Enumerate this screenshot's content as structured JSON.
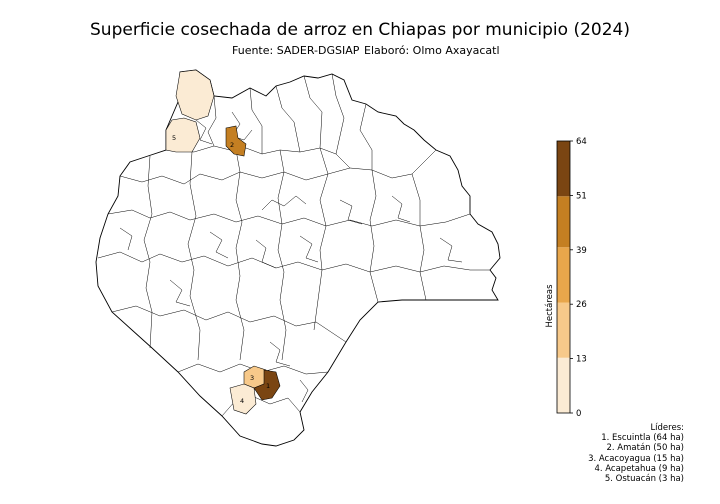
{
  "title": "Superficie cosechada de arroz en Chiapas por municipio (2024)",
  "source": "Fuente: SADER-DGSIAP",
  "author": "Elaboró: Olmo Axayacatl",
  "colorbar": {
    "label": "Hectáreas",
    "ticks": [
      "0",
      "13",
      "26",
      "39",
      "51",
      "64"
    ],
    "range": [
      0,
      64
    ],
    "bins": [
      {
        "from": 0,
        "to": 13,
        "color": "#fbebd4"
      },
      {
        "from": 13,
        "to": 26,
        "color": "#f7c98a"
      },
      {
        "from": 26,
        "to": 39,
        "color": "#e8a64b"
      },
      {
        "from": 39,
        "to": 51,
        "color": "#c47f22"
      },
      {
        "from": 51,
        "to": 64,
        "color": "#7a4512"
      }
    ]
  },
  "leaders": {
    "title": "Líderes:",
    "items": [
      {
        "rank": "1",
        "text": "1. Escuintla (64 ha)",
        "municipality": "Escuintla",
        "hectares": 64
      },
      {
        "rank": "2",
        "text": "2. Amatán (50 ha)",
        "municipality": "Amatán",
        "hectares": 50
      },
      {
        "rank": "3",
        "text": "3. Acacoyagua (15 ha)",
        "municipality": "Acacoyagua",
        "hectares": 15
      },
      {
        "rank": "4",
        "text": "4. Acapetahua (9 ha)",
        "municipality": "Acapetahua",
        "hectares": 9
      },
      {
        "rank": "5",
        "text": "5. Ostuacán (3 ha)",
        "municipality": "Ostuacán",
        "hectares": 3
      }
    ]
  },
  "other_municipalities_with_value": [
    {
      "area": "north-tip",
      "hectares": 3
    }
  ]
}
